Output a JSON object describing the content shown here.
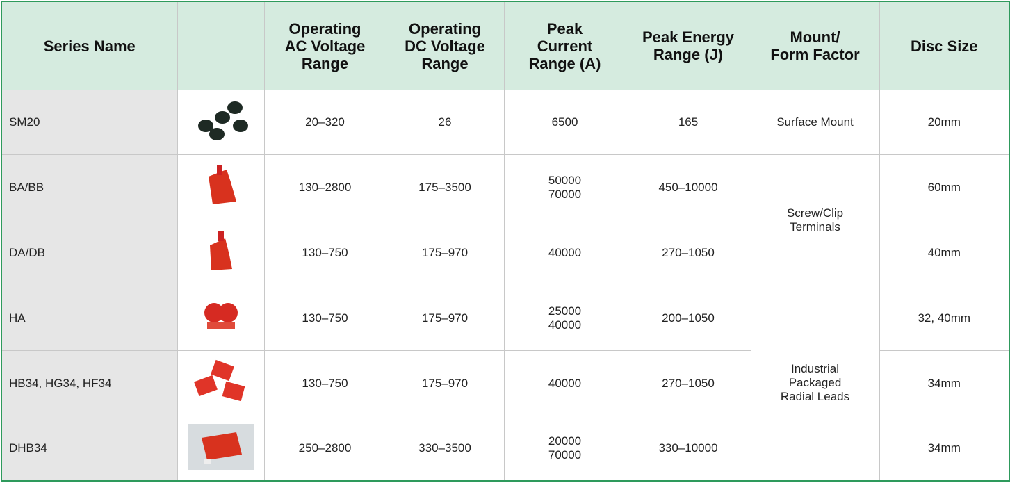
{
  "header": {
    "columns": [
      [
        "Series Name"
      ],
      [
        "Operating",
        "AC Voltage",
        "Range"
      ],
      [
        "Operating",
        "DC Voltage",
        "Range"
      ],
      [
        "Peak",
        "Current",
        "Range (A)"
      ],
      [
        "Peak Energy",
        "Range (J)"
      ],
      [
        "Mount/",
        "Form Factor"
      ],
      [
        "Disc Size"
      ]
    ]
  },
  "table": {
    "rows": [
      {
        "series": "SM20",
        "ac": "20–320",
        "dc": "26",
        "current": [
          "6500"
        ],
        "energy": "165",
        "mount": [
          "Surface Mount"
        ],
        "disc": "20mm"
      },
      {
        "series": "BA/BB",
        "ac": "130–2800",
        "dc": "175–3500",
        "current": [
          "50000",
          "70000"
        ],
        "energy": "450–10000",
        "mount": [
          "Screw/Clip",
          "Terminals"
        ],
        "disc": "60mm"
      },
      {
        "series": "DA/DB",
        "ac": "130–750",
        "dc": "175–970",
        "current": [
          "40000"
        ],
        "energy": "270–1050",
        "disc": "40mm"
      },
      {
        "series": "HA",
        "ac": "130–750",
        "dc": "175–970",
        "current": [
          "25000",
          "40000"
        ],
        "energy": "200–1050",
        "mount": [
          "Industrial",
          "Packaged",
          "Radial Leads"
        ],
        "disc": "32, 40mm"
      },
      {
        "series": "HB34, HG34, HF34",
        "ac": "130–750",
        "dc": "175–970",
        "current": [
          "40000"
        ],
        "energy": "270–1050",
        "disc": "34mm"
      },
      {
        "series": "DHB34",
        "ac": "250–2800",
        "dc": "330–3500",
        "current": [
          "20000",
          "70000"
        ],
        "energy": "330–10000",
        "disc": "34mm"
      }
    ]
  }
}
